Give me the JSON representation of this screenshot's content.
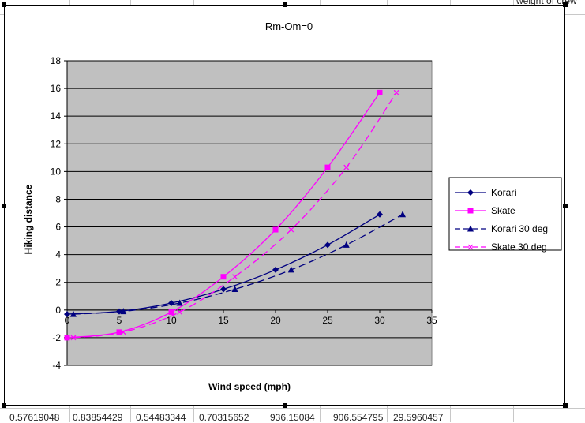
{
  "sheet": {
    "top_right_text": "weight of crew",
    "bottom_row": [
      "0.57619048",
      "0.83854429",
      "0.54483344",
      "0.70315652",
      "936.15084",
      "906.554795",
      "29.5960457"
    ]
  },
  "chart_data": {
    "type": "line",
    "title": "Rm-Om=0",
    "xlabel": "Wind speed (mph)",
    "ylabel": "Hiking distance",
    "xlim": [
      0,
      35
    ],
    "ylim": [
      -4,
      18
    ],
    "xticks": [
      0,
      5,
      10,
      15,
      20,
      25,
      30,
      35
    ],
    "yticks": [
      -4,
      -2,
      0,
      2,
      4,
      6,
      8,
      10,
      12,
      14,
      16,
      18
    ],
    "plot_background": "#c0c0c0",
    "grid": "horizontal",
    "legend_position": "right",
    "series": [
      {
        "name": "Korari",
        "color": "#000080",
        "marker": "diamond",
        "dash": "solid",
        "x": [
          0,
          5,
          10,
          15,
          20,
          25,
          30
        ],
        "y": [
          -0.3,
          -0.1,
          0.5,
          1.5,
          2.9,
          4.7,
          6.9
        ]
      },
      {
        "name": "Skate",
        "color": "#ff00ff",
        "marker": "square",
        "dash": "solid",
        "x": [
          0,
          5,
          10,
          15,
          20,
          25,
          30
        ],
        "y": [
          -2.0,
          -1.6,
          -0.15,
          2.4,
          5.8,
          10.3,
          15.7
        ]
      },
      {
        "name": "Korari 30 deg",
        "color": "#000080",
        "marker": "triangle",
        "dash": "dashed",
        "x": [
          0.6,
          5.4,
          10.8,
          16.1,
          21.5,
          26.8,
          32.2
        ],
        "y": [
          -0.3,
          -0.1,
          0.5,
          1.5,
          2.9,
          4.7,
          6.9
        ]
      },
      {
        "name": "Skate 30 deg",
        "color": "#ff00ff",
        "marker": "x",
        "dash": "dashed",
        "x": [
          0.6,
          5.4,
          10.8,
          16.1,
          21.5,
          26.8,
          31.6
        ],
        "y": [
          -2.0,
          -1.6,
          -0.15,
          2.4,
          5.8,
          10.3,
          15.7
        ]
      }
    ]
  }
}
